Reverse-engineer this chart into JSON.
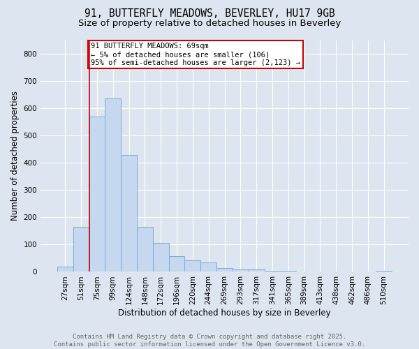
{
  "title_line1": "91, BUTTERFLY MEADOWS, BEVERLEY, HU17 9GB",
  "title_line2": "Size of property relative to detached houses in Beverley",
  "xlabel": "Distribution of detached houses by size in Beverley",
  "ylabel": "Number of detached properties",
  "bin_labels": [
    "27sqm",
    "51sqm",
    "75sqm",
    "99sqm",
    "124sqm",
    "148sqm",
    "172sqm",
    "196sqm",
    "220sqm",
    "244sqm",
    "269sqm",
    "293sqm",
    "317sqm",
    "341sqm",
    "365sqm",
    "389sqm",
    "413sqm",
    "438sqm",
    "462sqm",
    "486sqm",
    "510sqm"
  ],
  "bar_values": [
    20,
    165,
    570,
    635,
    430,
    165,
    105,
    57,
    42,
    35,
    15,
    10,
    8,
    4,
    5,
    2,
    1,
    1,
    0,
    0,
    5
  ],
  "bar_color": "#c5d8f0",
  "bar_edgecolor": "#7aadd4",
  "red_line_index": 2,
  "annotation_text": "91 BUTTERFLY MEADOWS: 69sqm\n← 5% of detached houses are smaller (106)\n95% of semi-detached houses are larger (2,123) →",
  "annotation_box_color": "#ffffff",
  "annotation_box_edgecolor": "#cc0000",
  "ylim": [
    0,
    850
  ],
  "yticks": [
    0,
    100,
    200,
    300,
    400,
    500,
    600,
    700,
    800
  ],
  "background_color": "#dde6f0",
  "plot_bg_color": "#dde6f0",
  "grid_color": "#ffffff",
  "footer_text": "Contains HM Land Registry data © Crown copyright and database right 2025.\nContains public sector information licensed under the Open Government Licence v3.0.",
  "title_fontsize": 10.5,
  "subtitle_fontsize": 9.5,
  "axis_label_fontsize": 8.5,
  "tick_label_fontsize": 7.5,
  "annotation_fontsize": 7.5,
  "footer_fontsize": 6.5
}
